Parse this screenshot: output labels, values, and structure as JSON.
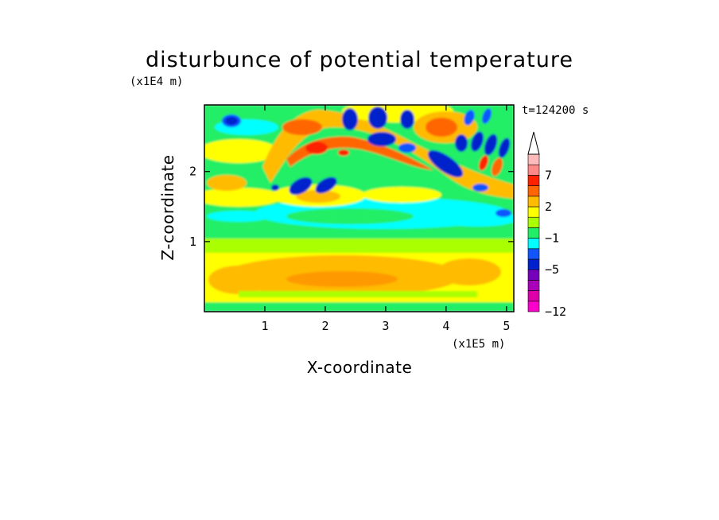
{
  "chart_data": {
    "type": "heatmap",
    "title": "disturbunce of potential temperature",
    "time_label": "t=124200 s",
    "xlabel": "X-coordinate",
    "ylabel": "Z-coordinate",
    "x_unit": "(x1E5 m)",
    "y_unit": "(x1E4 m)",
    "xlim": [
      0,
      5.12
    ],
    "ylim": [
      0,
      2.95
    ],
    "x_ticks": [
      1,
      2,
      3,
      4,
      5
    ],
    "y_ticks": [
      1,
      2
    ],
    "colorbar": {
      "levels": [
        -12,
        -11,
        -9,
        -7,
        -5,
        -3,
        -2,
        -1,
        0,
        1,
        2,
        3,
        5,
        7,
        9,
        11
      ],
      "labels": [
        "-12",
        "-5",
        "-1",
        "2",
        "7"
      ],
      "label_levels": [
        -12,
        -5,
        -1,
        2,
        7
      ],
      "colors": [
        "#ff00cc",
        "#dd00aa",
        "#aa00bb",
        "#7700bb",
        "#0022cc",
        "#1155ff",
        "#00ffff",
        "#22ee66",
        "#aaff00",
        "#ffff00",
        "#ffbb00",
        "#ff6600",
        "#ff2200",
        "#ff8888",
        "#ffbbbb"
      ],
      "extend": "max"
    }
  }
}
